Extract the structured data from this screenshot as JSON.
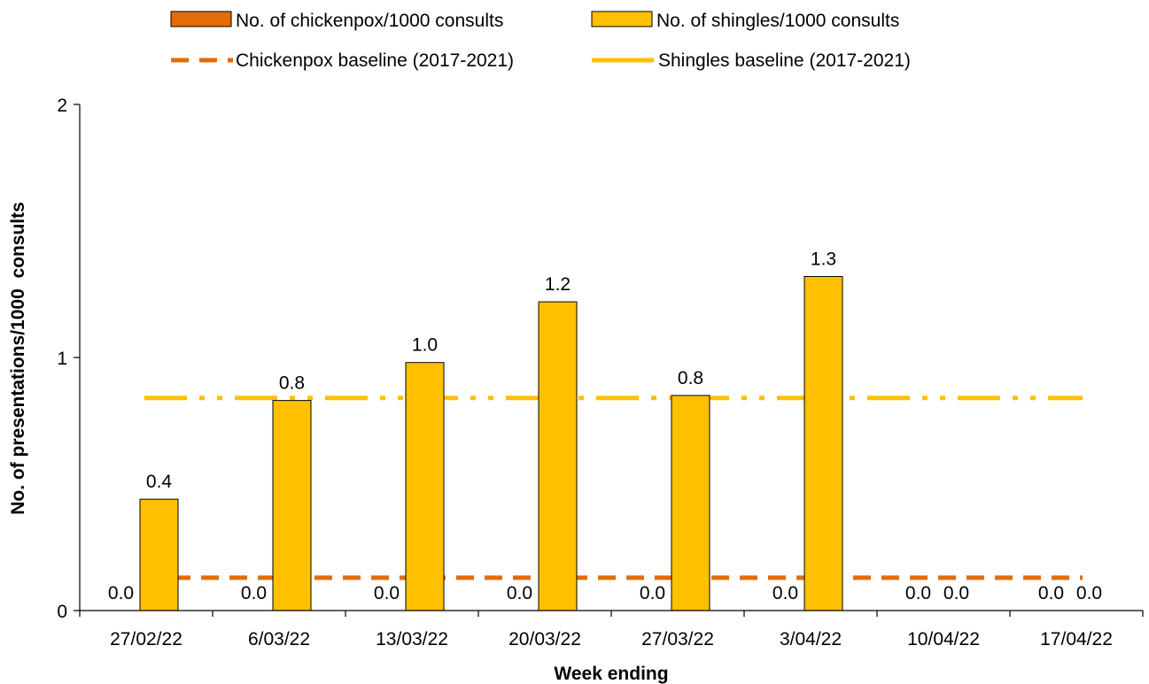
{
  "chart_data": {
    "type": "bar",
    "categories": [
      "27/02/22",
      "6/03/22",
      "13/03/22",
      "20/03/22",
      "27/03/22",
      "3/04/22",
      "10/04/22",
      "17/04/22"
    ],
    "series": [
      {
        "name": "No. of chickenpox/1000 consults",
        "type": "bar",
        "color": "#E36C09",
        "values": [
          0.0,
          0.0,
          0.0,
          0.0,
          0.0,
          0.0,
          0.0,
          0.0
        ],
        "labels": [
          "0.0",
          "0.0",
          "0.0",
          "0.0",
          "0.0",
          "0.0",
          "0.0",
          "0.0"
        ]
      },
      {
        "name": "No. of shingles/1000 consults",
        "type": "bar",
        "color": "#FFC000",
        "values": [
          0.44,
          0.83,
          0.98,
          1.22,
          0.85,
          1.32,
          0.0,
          0.0
        ],
        "labels": [
          "0.4",
          "0.8",
          "1.0",
          "1.2",
          "0.8",
          "1.3",
          "0.0",
          "0.0"
        ]
      },
      {
        "name": "Chickenpox baseline (2017-2021)",
        "type": "line",
        "style": "dashed",
        "color": "#E36C09",
        "values": [
          0.13,
          0.13,
          0.13,
          0.13,
          0.13,
          0.13,
          0.13,
          0.13
        ]
      },
      {
        "name": "Shingles baseline (2017-2021)",
        "type": "line",
        "style": "dash-dot",
        "color": "#FFC000",
        "values": [
          0.84,
          0.84,
          0.84,
          0.84,
          0.84,
          0.84,
          0.84,
          0.84
        ]
      }
    ],
    "xlabel": "Week ending",
    "ylabel": "No. of presentations/1000  consults",
    "ylim": [
      0,
      2
    ],
    "yticks": [
      0,
      1,
      2
    ],
    "grid": false,
    "legend_position": "top"
  }
}
